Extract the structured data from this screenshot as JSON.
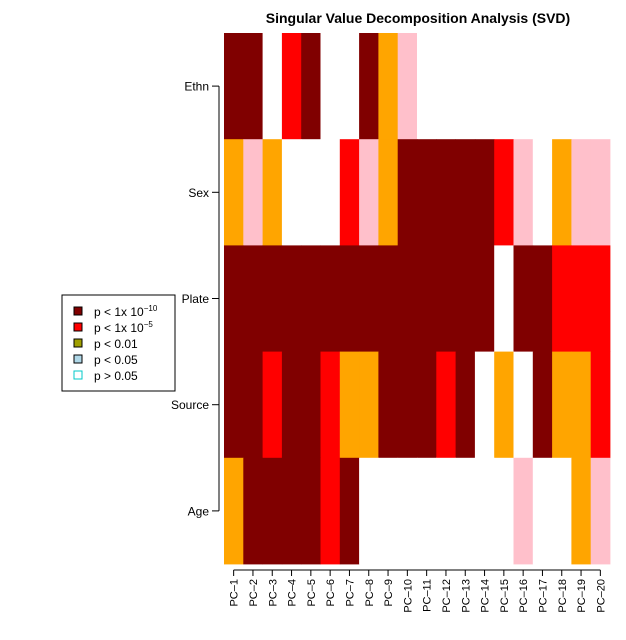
{
  "chart_data": {
    "type": "heatmap",
    "title": "Singular Value Decomposition Analysis (SVD)",
    "xlabel": "",
    "ylabel": "",
    "x_categories": [
      "PC–1",
      "PC–2",
      "PC–3",
      "PC–4",
      "PC–5",
      "PC–6",
      "PC–7",
      "PC–8",
      "PC–9",
      "PC–10",
      "PC–11",
      "PC–12",
      "PC–13",
      "PC–14",
      "PC–15",
      "PC–16",
      "PC–17",
      "PC–18",
      "PC–19",
      "PC–20"
    ],
    "y_categories": [
      "Ethn",
      "Sex",
      "Plate",
      "Source",
      "Age"
    ],
    "levels": [
      {
        "key": "p1e10",
        "label_prefix": "p < 1x 10",
        "label_exp": "−10",
        "color": "#800000"
      },
      {
        "key": "p1e5",
        "label_prefix": "p < 1x 10",
        "label_exp": "−5",
        "color": "#ff0000"
      },
      {
        "key": "p01",
        "label_prefix": "p < 0.01",
        "label_exp": "",
        "color": "#ffa500"
      },
      {
        "key": "p05",
        "label_prefix": "p < 0.05",
        "label_exp": "",
        "color": "#ffc0cb"
      },
      {
        "key": "ns",
        "label_prefix": "p > 0.05",
        "label_exp": "",
        "color": "#ffffff"
      }
    ],
    "legend": {
      "position": "left",
      "swatch_colors": [
        "#800000",
        "#ff0000",
        "#a0a000",
        "#b0d8e8",
        "#ffffff"
      ],
      "swatch_border_colors": [
        "#000000",
        "#000000",
        "#000000",
        "#000000",
        "#00c8c8"
      ]
    },
    "grid": false,
    "cells": [
      [
        "p1e10",
        "p1e10",
        "ns",
        "p1e5",
        "p1e10",
        "ns",
        "ns",
        "p1e10",
        "p01",
        "p05",
        "ns",
        "ns",
        "ns",
        "ns",
        "ns",
        "ns",
        "ns",
        "ns",
        "ns",
        "ns"
      ],
      [
        "p01",
        "p05",
        "p01",
        "ns",
        "ns",
        "ns",
        "p1e5",
        "p05",
        "p01",
        "p1e10",
        "p1e10",
        "p1e10",
        "p1e10",
        "p1e10",
        "p1e5",
        "p05",
        "ns",
        "p01",
        "p05",
        "p05"
      ],
      [
        "p1e10",
        "p1e10",
        "p1e10",
        "p1e10",
        "p1e10",
        "p1e10",
        "p1e10",
        "p1e10",
        "p1e10",
        "p1e10",
        "p1e10",
        "p1e10",
        "p1e10",
        "p1e10",
        "ns",
        "p1e10",
        "p1e10",
        "p1e5",
        "p1e5",
        "p1e5"
      ],
      [
        "p1e10",
        "p1e10",
        "p1e5",
        "p1e10",
        "p1e10",
        "p1e5",
        "p01",
        "p01",
        "p1e10",
        "p1e10",
        "p1e10",
        "p1e5",
        "p1e10",
        "ns",
        "p01",
        "ns",
        "p1e10",
        "p01",
        "p01",
        "p1e5"
      ],
      [
        "p01",
        "p1e10",
        "p1e10",
        "p1e10",
        "p1e10",
        "p1e5",
        "p1e10",
        "ns",
        "ns",
        "ns",
        "ns",
        "ns",
        "ns",
        "ns",
        "ns",
        "p05",
        "ns",
        "ns",
        "p01",
        "p05"
      ]
    ]
  }
}
